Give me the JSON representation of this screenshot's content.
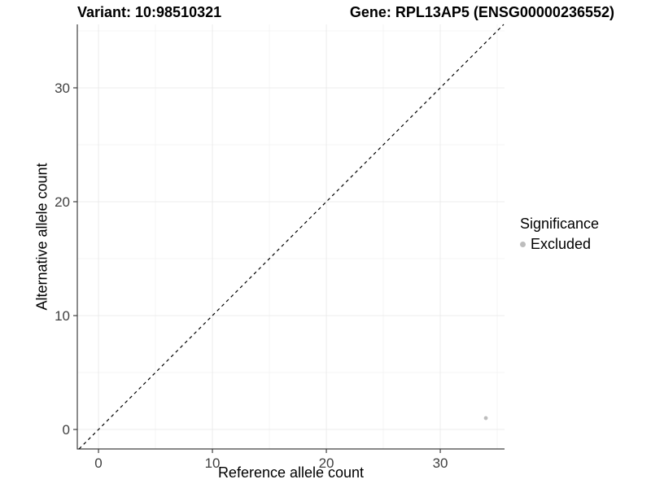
{
  "chart_data": {
    "type": "scatter",
    "title_variant": "Variant: 10:98510321",
    "title_gene": "Gene: RPL13AP5 (ENSG00000236552)",
    "xlabel": "Reference allele count",
    "ylabel": "Alternative allele count",
    "x_ticks": [
      0,
      10,
      20,
      30
    ],
    "y_ticks": [
      0,
      10,
      20,
      30
    ],
    "x_minor_ticks": [
      5,
      15,
      25,
      35
    ],
    "y_minor_ticks": [
      5,
      15,
      25,
      35
    ],
    "xlim": [
      -1.86,
      35.64
    ],
    "ylim": [
      -1.71,
      35.57
    ],
    "grid": true,
    "identity_line": {
      "style": "dashed",
      "equation": "y = x",
      "color": "#000000"
    },
    "series": [
      {
        "name": "Excluded",
        "color": "#bdbdbd",
        "points": [
          {
            "x": 34,
            "y": 1
          }
        ]
      }
    ],
    "legend": {
      "title": "Significance",
      "position": "right",
      "items": [
        {
          "label": "Excluded",
          "color": "#bdbdbd"
        }
      ]
    },
    "colors": {
      "background": "#ffffff",
      "grid_major": "#ececec",
      "grid_minor": "#f4f4f4",
      "axis_line": "#404040",
      "tick_label": "#404040",
      "text": "#000000"
    }
  }
}
